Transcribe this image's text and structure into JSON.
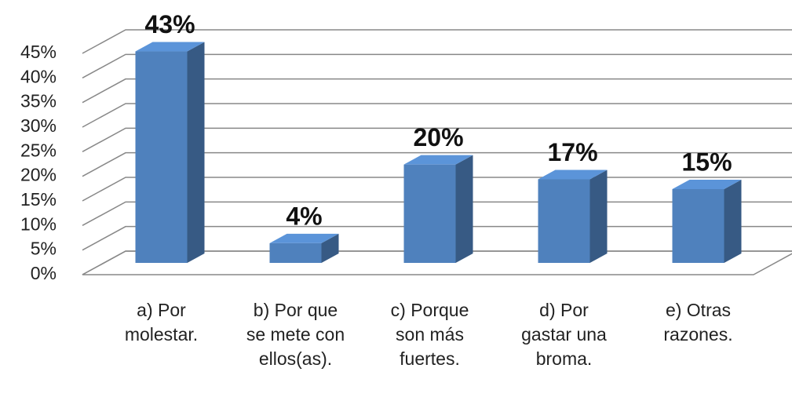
{
  "chart_data": {
    "type": "bar3d",
    "categories": [
      "a) Por molestar.",
      "b) Por que se mete con ellos(as).",
      "c) Porque son más fuertes.",
      "d) Por gastar una broma.",
      "e) Otras razones."
    ],
    "values": [
      43,
      4,
      20,
      17,
      15
    ],
    "value_labels": [
      "43%",
      "4%",
      "20%",
      "17%",
      "15%"
    ],
    "color": "#4f81bd",
    "ylim": [
      0,
      45
    ],
    "yticks": [
      {
        "value": 0,
        "label": "0%"
      },
      {
        "value": 5,
        "label": "5%"
      },
      {
        "value": 10,
        "label": "10%"
      },
      {
        "value": 15,
        "label": "15%"
      },
      {
        "value": 20,
        "label": "20%"
      },
      {
        "value": 25,
        "label": "25%"
      },
      {
        "value": 30,
        "label": "30%"
      },
      {
        "value": 35,
        "label": "35%"
      },
      {
        "value": 40,
        "label": "40%"
      },
      {
        "value": 45,
        "label": "45%"
      }
    ],
    "grid": true
  }
}
